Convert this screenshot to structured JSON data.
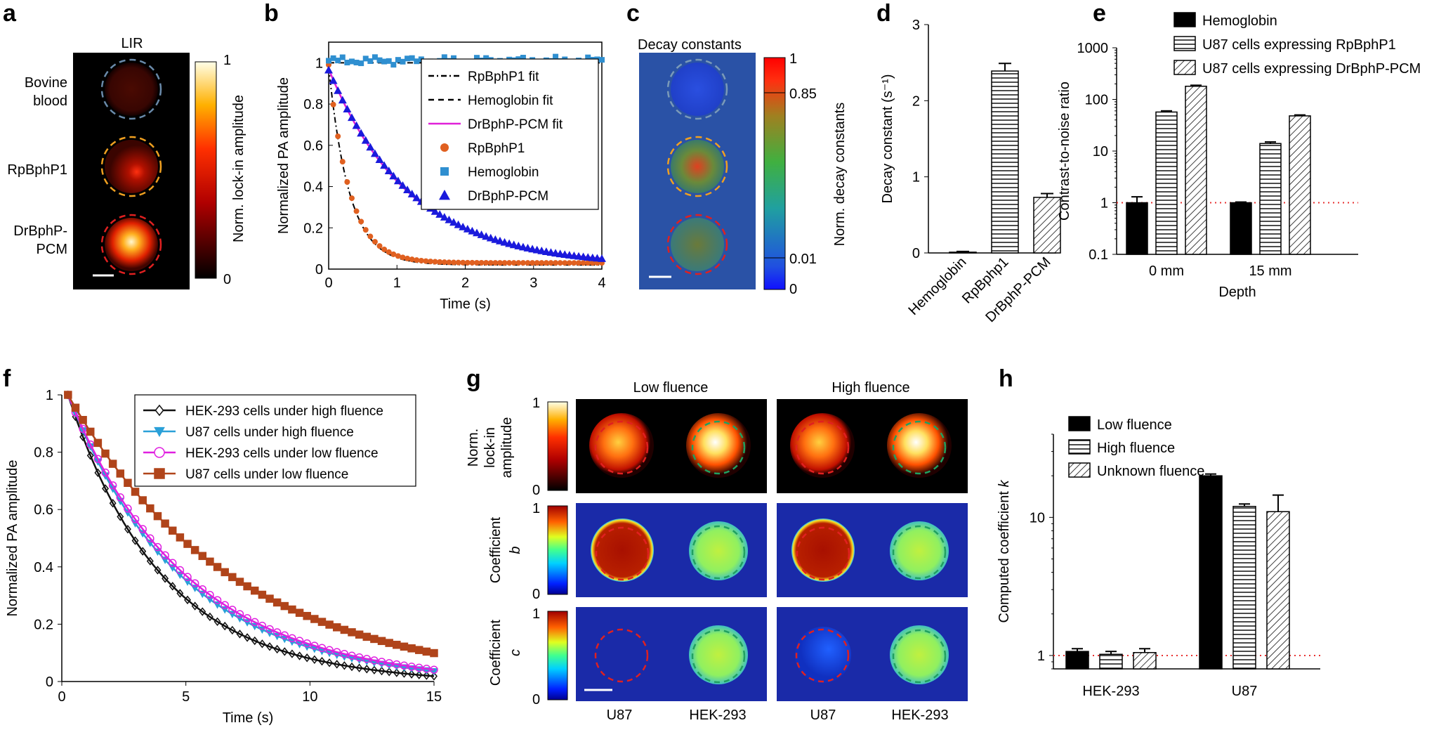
{
  "panels": {
    "a": "a",
    "b": "b",
    "c": "c",
    "d": "d",
    "e": "e",
    "f": "f",
    "g": "g",
    "h": "h"
  },
  "colors": {
    "hemoglobin": "#2f8fd0",
    "rpbphp1": "#e06020",
    "drbphp": "#1a1adc",
    "drfit": "#e020d8",
    "red_dotted": "#e83030",
    "blue_bg": "#1a2aa8"
  },
  "panel_a": {
    "title": "LIR",
    "rows": [
      [
        "Bovine",
        "blood"
      ],
      [
        "RpBphP1"
      ],
      [
        "DrBphP-",
        "PCM"
      ]
    ],
    "colorbar_label": "Norm. lock-in amplitude",
    "colorbar_max": "1",
    "colorbar_min": "0"
  },
  "panel_c": {
    "title": "Decay constants",
    "colorbar_label": "Norm. decay constants",
    "ticks": [
      "1",
      "0.85",
      "0.01",
      "0"
    ]
  },
  "panel_g": {
    "col_titles": [
      "Low fluence",
      "High fluence"
    ],
    "row_labels": [
      [
        "Norm.",
        "lock-in",
        "amplitude"
      ],
      [
        "Coefficient",
        "b"
      ],
      [
        "Coefficient",
        "c"
      ]
    ],
    "cb_ticks": [
      "1",
      "0"
    ],
    "bottom_labels": [
      "U87",
      "HEK-293",
      "U87",
      "HEK-293"
    ]
  },
  "chart_data": [
    {
      "panel": "b",
      "type": "line",
      "xlabel": "Time (s)",
      "ylabel": "Normalized PA amplitude",
      "xlim": [
        0,
        4
      ],
      "ylim": [
        0,
        1.1
      ],
      "xticks": [
        0,
        1,
        2,
        3,
        4
      ],
      "yticks": [
        0,
        0.2,
        0.4,
        0.6,
        0.8,
        1
      ],
      "series": [
        {
          "name": "RpBphP1 fit",
          "style": "dashdot",
          "model": "exp",
          "a": 0.96,
          "k": 3.3,
          "c": 0.02
        },
        {
          "name": "Hemoglobin fit",
          "style": "dash",
          "model": "const",
          "value": 1.0
        },
        {
          "name": "DrBphP-PCM fit",
          "style": "solid",
          "model": "exp",
          "a": 0.95,
          "k": 0.85,
          "c": 0.02
        },
        {
          "name": "RpBphP1",
          "style": "circle",
          "model": "exp",
          "a": 0.96,
          "k": 3.3,
          "c": 0.03,
          "n": 60
        },
        {
          "name": "Hemoglobin",
          "style": "square",
          "model": "noise",
          "value": 1.01,
          "amp": 0.02,
          "n": 60
        },
        {
          "name": "DrBphP-PCM",
          "style": "triangle",
          "model": "exp",
          "a": 0.95,
          "k": 0.82,
          "c": 0.015,
          "n": 60
        }
      ]
    },
    {
      "panel": "d",
      "type": "bar",
      "ylabel": "Decay constant (s⁻¹)",
      "categories": [
        "Hemoglobin",
        "RpBphp1",
        "DrBphP-PCM"
      ],
      "values": [
        0.01,
        2.39,
        0.73
      ],
      "errors": [
        0.01,
        0.1,
        0.05
      ],
      "patterns": [
        "solid",
        "hlines",
        "diag"
      ],
      "ylim": [
        0,
        3
      ],
      "yticks": [
        0,
        1,
        2,
        3
      ]
    },
    {
      "panel": "e",
      "type": "bar",
      "scale": "log",
      "ylabel": "Contrast-to-noise ratio",
      "xlabel": "Depth",
      "categories": [
        "0 mm",
        "15 mm"
      ],
      "ylim": [
        0.1,
        1000
      ],
      "yticks": [
        "0.1",
        "1",
        "10",
        "100",
        "1000"
      ],
      "reference_line": 1,
      "series": [
        {
          "name": "Hemoglobin",
          "pattern": "solid",
          "values": [
            1.0,
            1.0
          ],
          "errors": [
            0.3,
            0.03
          ]
        },
        {
          "name": "U87 cells expressing RpBphP1",
          "pattern": "hlines",
          "values": [
            57,
            14
          ],
          "errors": [
            3,
            1
          ]
        },
        {
          "name": "U87 cells expressing DrBphP-PCM",
          "pattern": "diag",
          "values": [
            180,
            48
          ],
          "errors": [
            8,
            2
          ]
        }
      ]
    },
    {
      "panel": "f",
      "type": "line",
      "xlabel": "Time (s)",
      "ylabel": "Normalized PA amplitude",
      "xlim": [
        0,
        15
      ],
      "ylim": [
        0,
        1
      ],
      "xticks": [
        0,
        5,
        10,
        15
      ],
      "yticks": [
        0,
        0.2,
        0.4,
        0.6,
        0.8,
        1
      ],
      "series": [
        {
          "name": "HEK-293 cells under high fluence",
          "color": "#111111",
          "marker": "diamond",
          "k": 0.27
        },
        {
          "name": "U87 cells under high fluence",
          "color": "#2aa0d8",
          "marker": "tri-down",
          "k": 0.225
        },
        {
          "name": "HEK-293 cells under low fluence",
          "color": "#e020e0",
          "marker": "circle",
          "k": 0.215
        },
        {
          "name": "U87 cells under low fluence",
          "color": "#b0441a",
          "marker": "square",
          "k": 0.155
        }
      ]
    },
    {
      "panel": "h",
      "type": "bar",
      "scale": "log",
      "ylabel": "Computed coefficient k",
      "categories": [
        "HEK-293",
        "U87"
      ],
      "ylim": [
        0.8,
        40
      ],
      "yticks": [
        "1",
        "10"
      ],
      "reference_line": 1,
      "series": [
        {
          "name": "Low fluence",
          "pattern": "solid",
          "values": [
            1.07,
            20
          ],
          "errors": [
            0.05,
            0.6
          ]
        },
        {
          "name": "High fluence",
          "pattern": "hlines",
          "values": [
            1.02,
            12
          ],
          "errors": [
            0.05,
            0.5
          ]
        },
        {
          "name": "Unknown fluence",
          "pattern": "diag",
          "values": [
            1.05,
            11
          ],
          "errors": [
            0.07,
            3.5
          ]
        }
      ]
    }
  ]
}
